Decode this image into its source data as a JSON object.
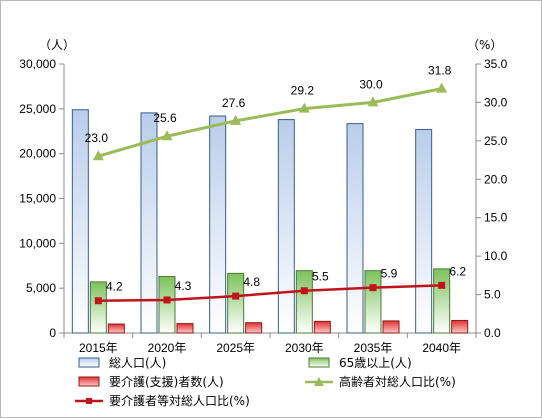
{
  "chart_data": {
    "type": "bar",
    "categories": [
      "2015年",
      "2020年",
      "2025年",
      "2030年",
      "2035年",
      "2040年"
    ],
    "left_axis": {
      "unit_label": "（人）",
      "ylim": [
        0,
        30000
      ],
      "ticks": [
        "0",
        "5,000",
        "10,000",
        "15,000",
        "20,000",
        "25,000",
        "30,000"
      ]
    },
    "right_axis": {
      "unit_label": "（%）",
      "ylim": [
        0,
        35
      ],
      "ticks": [
        "0.0",
        "5.0",
        "10.0",
        "15.0",
        "20.0",
        "25.0",
        "30.0",
        "35.0"
      ]
    },
    "series": [
      {
        "name": "総人口(人)",
        "type": "bar",
        "axis": "left",
        "color": "#4f81bd",
        "values": [
          24900,
          24550,
          24200,
          23800,
          23350,
          22700
        ]
      },
      {
        "name": "65歳以上(人)",
        "type": "bar",
        "axis": "left",
        "color": "#77b35a",
        "values": [
          5700,
          6300,
          6650,
          6950,
          6950,
          7150
        ]
      },
      {
        "name": "要介護(支援)者数(人)",
        "type": "bar",
        "axis": "left",
        "color": "#d92b2b",
        "values": [
          1000,
          1050,
          1150,
          1300,
          1350,
          1400
        ]
      },
      {
        "name": "高齢者対総人口比(%)",
        "type": "line",
        "axis": "right",
        "color": "#9bbb59",
        "marker": "triangle",
        "values": [
          23.0,
          25.6,
          27.6,
          29.2,
          30.0,
          31.8
        ],
        "labels": [
          "23.0",
          "25.6",
          "27.6",
          "29.2",
          "30.0",
          "31.8"
        ]
      },
      {
        "name": "要介護者等対総人口比(%)",
        "type": "line",
        "axis": "right",
        "color": "#c0141c",
        "marker": "square",
        "values": [
          4.2,
          4.3,
          4.8,
          5.5,
          5.9,
          6.2
        ],
        "labels": [
          "4.2",
          "4.3",
          "4.8",
          "5.5",
          "5.9",
          "6.2"
        ]
      }
    ],
    "grid": false,
    "legend_position": "bottom"
  }
}
